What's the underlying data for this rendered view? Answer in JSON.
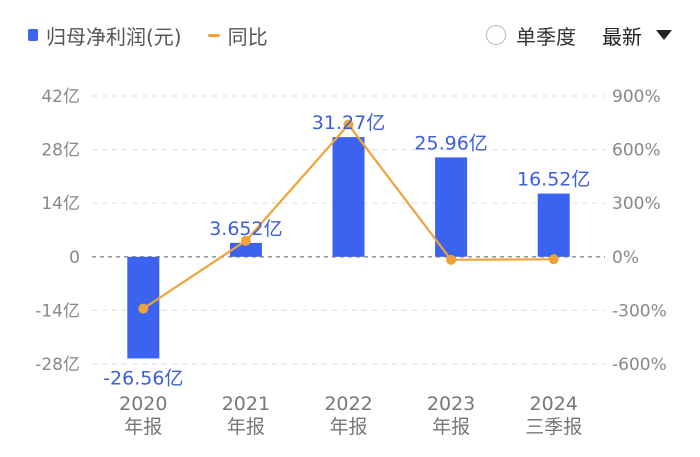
{
  "legend": {
    "bar_series": "归母净利润(元)",
    "line_series": "同比"
  },
  "controls": {
    "season_label": "单季度",
    "sort_label": "最新"
  },
  "chart_data": {
    "type": "bar",
    "categories": [
      {
        "year": "2020",
        "period": "年报"
      },
      {
        "year": "2021",
        "period": "年报"
      },
      {
        "year": "2022",
        "period": "年报"
      },
      {
        "year": "2023",
        "period": "年报"
      },
      {
        "year": "2024",
        "period": "三季报"
      }
    ],
    "series": [
      {
        "name": "归母净利润(元)",
        "type": "bar",
        "axis": "left",
        "color": "#3b63f0",
        "values": [
          -26.56,
          3.652,
          31.27,
          25.96,
          16.52
        ],
        "labels": [
          "-26.56亿",
          "3.652亿",
          "31.27亿",
          "25.96亿",
          "16.52亿"
        ]
      },
      {
        "name": "同比",
        "type": "line",
        "axis": "right",
        "color": "#f0a33a",
        "values": [
          -290,
          90,
          740,
          -17,
          -14
        ]
      }
    ],
    "y_left": {
      "ticks": [
        -28,
        -14,
        0,
        14,
        28,
        42
      ],
      "tick_labels": [
        "-28亿",
        "-14亿",
        "0",
        "14亿",
        "28亿",
        "42亿"
      ],
      "range": [
        -28,
        42
      ]
    },
    "y_right": {
      "ticks": [
        -600,
        -300,
        0,
        300,
        600,
        900
      ],
      "tick_labels": [
        "-600%",
        "-300%",
        "0%",
        "300%",
        "600%",
        "900%"
      ],
      "range": [
        -600,
        900
      ]
    },
    "grid": true,
    "legend_position": "top-left"
  }
}
